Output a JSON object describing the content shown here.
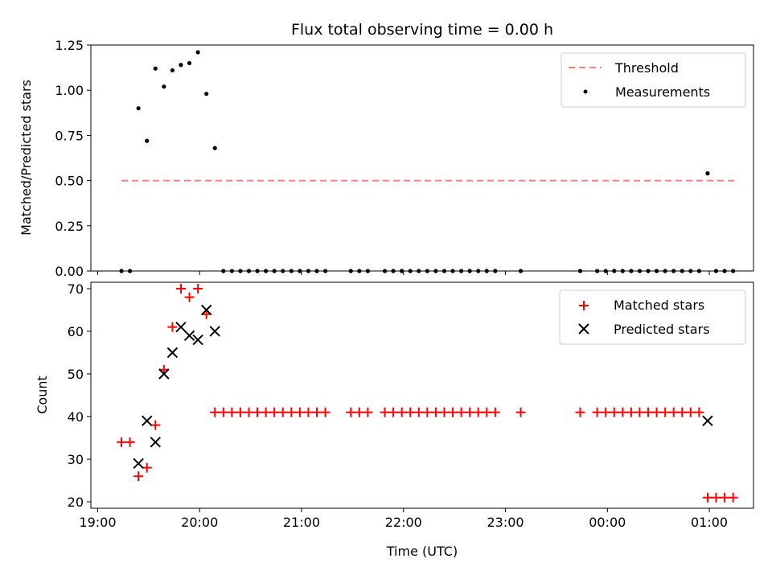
{
  "chart_data": {
    "title": "Flux total observing time = 0.00 h",
    "xlabel": "Time (UTC)",
    "x_ticks": [
      "19:00",
      "20:00",
      "21:00",
      "22:00",
      "23:00",
      "00:00",
      "01:00"
    ],
    "panels": [
      {
        "type": "scatter",
        "ylabel": "Matched/Predicted stars",
        "ylim": [
          0,
          1.25
        ],
        "yticks": [
          "0.00",
          "0.25",
          "0.50",
          "0.75",
          "1.00",
          "1.25"
        ],
        "legend_position": "upper right",
        "threshold": {
          "name": "Threshold",
          "value": 0.5,
          "x_range": [
            "19:14",
            "01:15"
          ],
          "color": "#ff7f7f"
        },
        "series": [
          {
            "name": "Measurements",
            "color": "#000000",
            "x": [
              "19:14",
              "19:19",
              "19:24",
              "19:29",
              "19:34",
              "19:39",
              "19:44",
              "19:49",
              "19:54",
              "19:59",
              "20:04",
              "20:09",
              "20:14",
              "20:19",
              "20:24",
              "20:29",
              "20:34",
              "20:39",
              "20:44",
              "20:49",
              "20:54",
              "20:59",
              "21:04",
              "21:09",
              "21:14",
              "21:29",
              "21:34",
              "21:39",
              "21:49",
              "21:54",
              "21:59",
              "22:04",
              "22:09",
              "22:14",
              "22:19",
              "22:24",
              "22:29",
              "22:34",
              "22:39",
              "22:44",
              "22:49",
              "22:54",
              "23:09",
              "23:44",
              "23:54",
              "23:59",
              "00:04",
              "00:09",
              "00:14",
              "00:19",
              "00:24",
              "00:29",
              "00:34",
              "00:39",
              "00:44",
              "00:49",
              "00:54",
              "00:59",
              "01:04",
              "01:09",
              "01:14"
            ],
            "y": [
              0,
              0,
              0.9,
              0.72,
              1.12,
              1.02,
              1.11,
              1.14,
              1.15,
              1.21,
              0.98,
              0.68,
              0,
              0,
              0,
              0,
              0,
              0,
              0,
              0,
              0,
              0,
              0,
              0,
              0,
              0,
              0,
              0,
              0,
              0,
              0,
              0,
              0,
              0,
              0,
              0,
              0,
              0,
              0,
              0,
              0,
              0,
              0,
              0,
              0,
              0,
              0,
              0,
              0,
              0,
              0,
              0,
              0,
              0,
              0,
              0,
              0,
              0.54,
              0,
              0,
              0
            ]
          }
        ]
      },
      {
        "type": "scatter",
        "ylabel": "Count",
        "ylim": [
          18.5,
          71.5
        ],
        "yticks": [
          "20",
          "30",
          "40",
          "50",
          "60",
          "70"
        ],
        "legend_position": "upper right",
        "series": [
          {
            "name": "Matched stars",
            "marker": "plus",
            "color": "#ff0000",
            "x": [
              "19:14",
              "19:19",
              "19:24",
              "19:29",
              "19:34",
              "19:39",
              "19:44",
              "19:49",
              "19:54",
              "19:59",
              "20:04",
              "20:09",
              "20:14",
              "20:19",
              "20:24",
              "20:29",
              "20:34",
              "20:39",
              "20:44",
              "20:49",
              "20:54",
              "20:59",
              "21:04",
              "21:09",
              "21:14",
              "21:29",
              "21:34",
              "21:39",
              "21:49",
              "21:54",
              "21:59",
              "22:04",
              "22:09",
              "22:14",
              "22:19",
              "22:24",
              "22:29",
              "22:34",
              "22:39",
              "22:44",
              "22:49",
              "22:54",
              "23:09",
              "23:44",
              "23:54",
              "23:59",
              "00:04",
              "00:09",
              "00:14",
              "00:19",
              "00:24",
              "00:29",
              "00:34",
              "00:39",
              "00:44",
              "00:49",
              "00:54",
              "00:59",
              "01:04",
              "01:09",
              "01:14"
            ],
            "y": [
              34,
              34,
              26,
              28,
              38,
              51,
              61,
              70,
              68,
              70,
              64,
              41,
              41,
              41,
              41,
              41,
              41,
              41,
              41,
              41,
              41,
              41,
              41,
              41,
              41,
              41,
              41,
              41,
              41,
              41,
              41,
              41,
              41,
              41,
              41,
              41,
              41,
              41,
              41,
              41,
              41,
              41,
              41,
              41,
              41,
              41,
              41,
              41,
              41,
              41,
              41,
              41,
              41,
              41,
              41,
              41,
              41,
              21,
              21,
              21,
              21
            ]
          },
          {
            "name": "Predicted stars",
            "marker": "x",
            "color": "#000000",
            "x": [
              "19:24",
              "19:29",
              "19:34",
              "19:39",
              "19:44",
              "19:49",
              "19:54",
              "19:59",
              "20:04",
              "20:09",
              "00:59"
            ],
            "y": [
              29,
              39,
              34,
              50,
              55,
              61,
              59,
              58,
              65,
              60,
              39
            ]
          }
        ]
      }
    ]
  }
}
